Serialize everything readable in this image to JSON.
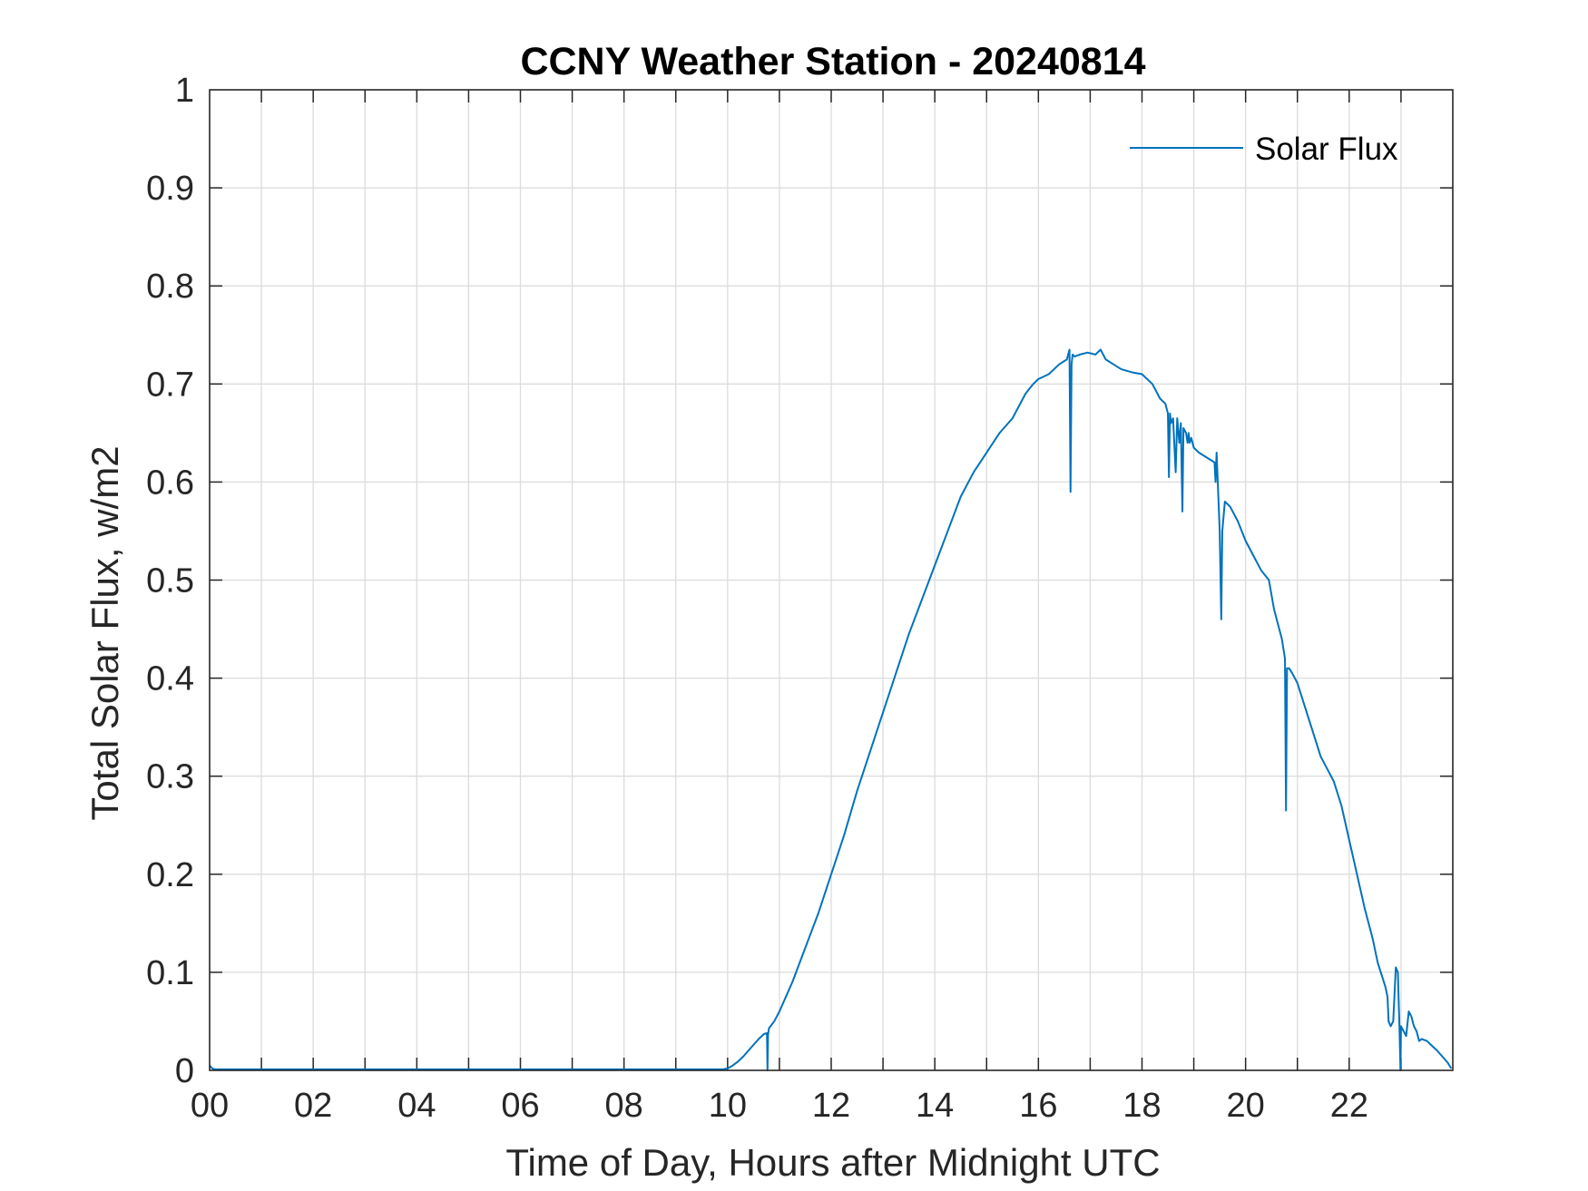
{
  "chart_data": {
    "type": "line",
    "title": "CCNY Weather Station - 20240814",
    "xlabel": "Time of Day, Hours after Midnight UTC",
    "ylabel": "Total Solar Flux, w/m2",
    "xlim": [
      0,
      24
    ],
    "ylim": [
      0,
      1
    ],
    "x_ticks": [
      0,
      2,
      4,
      6,
      8,
      10,
      12,
      14,
      16,
      18,
      20,
      22
    ],
    "x_tick_labels": [
      "00",
      "02",
      "04",
      "06",
      "08",
      "10",
      "12",
      "14",
      "16",
      "18",
      "20",
      "22"
    ],
    "x_minor_grid": [
      1,
      3,
      5,
      7,
      9,
      11,
      13,
      15,
      17,
      19,
      21,
      23
    ],
    "y_ticks": [
      0,
      0.1,
      0.2,
      0.3,
      0.4,
      0.5,
      0.6,
      0.7,
      0.8,
      0.9,
      1
    ],
    "y_tick_labels": [
      "0",
      "0.1",
      "0.2",
      "0.3",
      "0.4",
      "0.5",
      "0.6",
      "0.7",
      "0.8",
      "0.9",
      "1"
    ],
    "grid": true,
    "legend": {
      "position": "top-right",
      "entries": [
        "Solar Flux"
      ]
    },
    "colors": {
      "series": "#0072BD",
      "axes": "#262626",
      "grid": "#dcdcdc"
    },
    "series": [
      {
        "name": "Solar Flux",
        "x": [
          0,
          0.05,
          0.1,
          1,
          2,
          3,
          4,
          5,
          6,
          7,
          8,
          9,
          9.9,
          10.0,
          10.1,
          10.2,
          10.3,
          10.4,
          10.5,
          10.6,
          10.7,
          10.76,
          10.77,
          10.78,
          10.79,
          10.8,
          10.9,
          11.0,
          11.25,
          11.5,
          11.75,
          12.0,
          12.25,
          12.5,
          12.75,
          13.0,
          13.25,
          13.5,
          13.75,
          14.0,
          14.25,
          14.5,
          14.75,
          15.0,
          15.25,
          15.5,
          15.75,
          15.9,
          16.0,
          16.2,
          16.4,
          16.55,
          16.6,
          16.62,
          16.64,
          16.66,
          16.7,
          16.8,
          16.95,
          17.1,
          17.2,
          17.3,
          17.45,
          17.6,
          17.8,
          18.0,
          18.2,
          18.35,
          18.45,
          18.5,
          18.52,
          18.54,
          18.56,
          18.6,
          18.65,
          18.68,
          18.72,
          18.75,
          18.78,
          18.8,
          18.85,
          18.88,
          18.9,
          18.92,
          18.95,
          19.0,
          19.1,
          19.25,
          19.4,
          19.42,
          19.44,
          19.5,
          19.53,
          19.55,
          19.6,
          19.7,
          19.85,
          20.0,
          20.15,
          20.3,
          20.45,
          20.55,
          20.7,
          20.76,
          20.78,
          20.8,
          20.84,
          20.9,
          21.0,
          21.15,
          21.3,
          21.45,
          21.6,
          21.7,
          21.85,
          22.0,
          22.15,
          22.3,
          22.45,
          22.55,
          22.7,
          22.74,
          22.76,
          22.8,
          22.85,
          22.9,
          22.94,
          22.95,
          22.97,
          22.99,
          23.0,
          23.05,
          23.1,
          23.15,
          23.2,
          23.25,
          23.3,
          23.35,
          23.4,
          23.5,
          23.6,
          23.7,
          23.8,
          23.9,
          23.97
        ],
        "values": [
          0.005,
          0.002,
          0.001,
          0.001,
          0.001,
          0.001,
          0.001,
          0.001,
          0.001,
          0.001,
          0.001,
          0.001,
          0.001,
          0.002,
          0.005,
          0.009,
          0.014,
          0.02,
          0.026,
          0.032,
          0.037,
          0.038,
          0.0,
          0.036,
          0.04,
          0.043,
          0.05,
          0.06,
          0.09,
          0.125,
          0.16,
          0.2,
          0.24,
          0.285,
          0.325,
          0.365,
          0.405,
          0.445,
          0.48,
          0.515,
          0.55,
          0.585,
          0.61,
          0.63,
          0.65,
          0.665,
          0.69,
          0.7,
          0.705,
          0.71,
          0.72,
          0.725,
          0.735,
          0.59,
          0.72,
          0.73,
          0.728,
          0.73,
          0.732,
          0.73,
          0.735,
          0.725,
          0.72,
          0.715,
          0.712,
          0.71,
          0.7,
          0.685,
          0.68,
          0.67,
          0.605,
          0.67,
          0.66,
          0.665,
          0.61,
          0.665,
          0.64,
          0.66,
          0.57,
          0.655,
          0.65,
          0.64,
          0.65,
          0.64,
          0.645,
          0.635,
          0.63,
          0.625,
          0.62,
          0.6,
          0.63,
          0.55,
          0.46,
          0.55,
          0.58,
          0.575,
          0.56,
          0.54,
          0.525,
          0.51,
          0.5,
          0.47,
          0.44,
          0.42,
          0.265,
          0.41,
          0.41,
          0.405,
          0.395,
          0.37,
          0.345,
          0.32,
          0.305,
          0.295,
          0.27,
          0.235,
          0.2,
          0.165,
          0.135,
          0.11,
          0.085,
          0.075,
          0.05,
          0.045,
          0.05,
          0.105,
          0.1,
          0.08,
          0.045,
          0.0,
          0.045,
          0.04,
          0.035,
          0.06,
          0.055,
          0.045,
          0.04,
          0.03,
          0.032,
          0.03,
          0.025,
          0.02,
          0.014,
          0.008,
          0.002
        ]
      }
    ]
  }
}
